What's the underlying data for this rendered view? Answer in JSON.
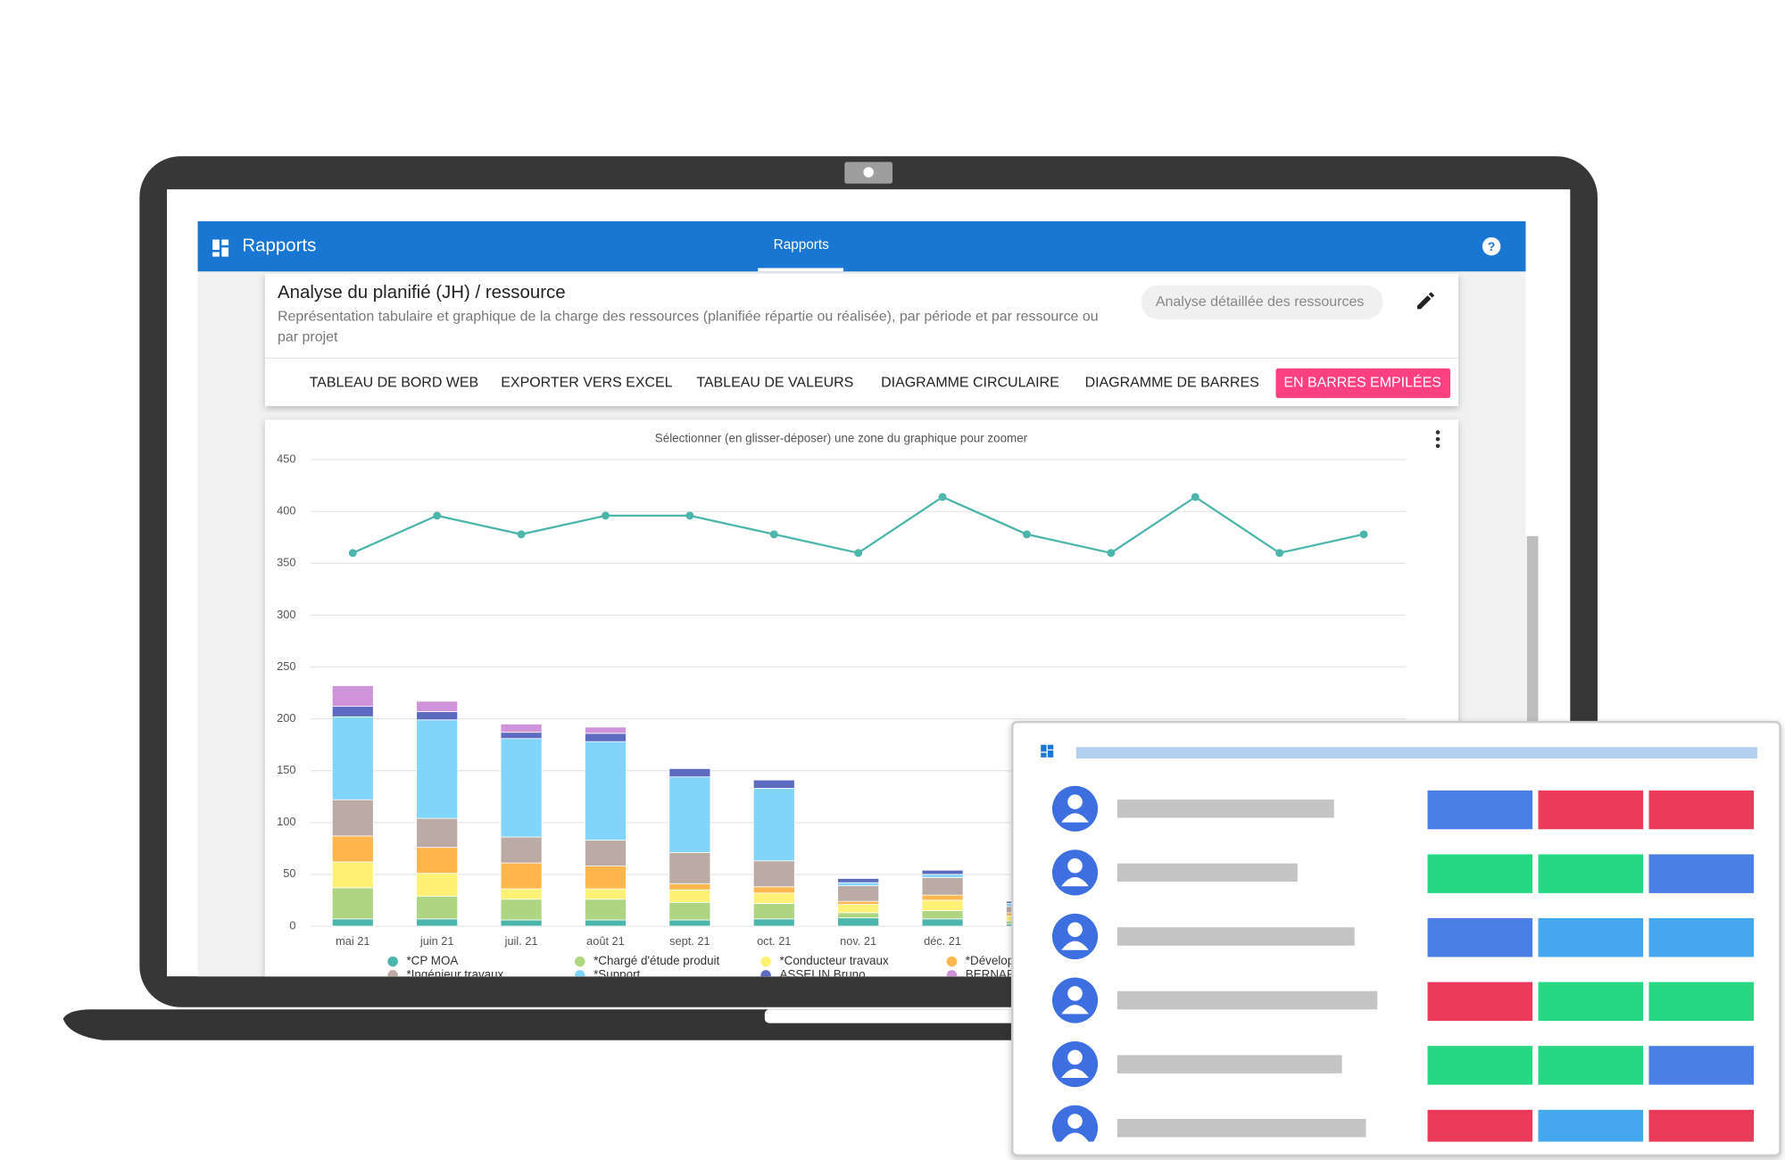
{
  "header": {
    "app_title": "Rapports",
    "nav_tab": "Rapports"
  },
  "report": {
    "title": "Analyse du planifié (JH) / ressource",
    "description_line1": "Représentation tabulaire et graphique de la charge des ressources (planifiée répartie ou réalisée), par période et par ressource ou",
    "description_line2": "par projet",
    "chip": "Analyse détaillée des ressources"
  },
  "tabs": [
    "TABLEAU DE BORD WEB",
    "EXPORTER VERS EXCEL",
    "TABLEAU DE VALEURS",
    "DIAGRAMME CIRCULAIRE",
    "DIAGRAMME DE BARRES",
    "EN BARRES EMPILÉES"
  ],
  "active_tab": 5,
  "chart_data": {
    "type": "stacked_bar_line",
    "hint": "Sélectionner (en glisser-déposer) une zone du graphique pour zoomer",
    "categories": [
      "mai 21",
      "juin 21",
      "juil. 21",
      "août 21",
      "sept. 21",
      "oct. 21",
      "nov. 21",
      "déc. 21",
      null,
      null,
      null,
      null,
      null
    ],
    "ylim": [
      0,
      450
    ],
    "yticks": [
      0,
      50,
      100,
      150,
      200,
      250,
      300,
      350,
      400,
      450
    ],
    "grid": true,
    "series": [
      {
        "name": "*CP MOA",
        "color": "#4db6ac",
        "values": [
          7,
          7,
          6,
          6,
          6,
          7,
          8,
          7,
          2,
          null,
          null,
          null,
          null
        ]
      },
      {
        "name": "*Chargé d'étude produit",
        "color": "#aed581",
        "values": [
          30,
          22,
          20,
          20,
          17,
          15,
          5,
          8,
          3,
          null,
          null,
          null,
          null
        ]
      },
      {
        "name": "*Conducteur travaux",
        "color": "#fff176",
        "values": [
          25,
          22,
          10,
          10,
          12,
          10,
          8,
          10,
          5,
          null,
          null,
          null,
          null
        ]
      },
      {
        "name": "*Dévelop",
        "color": "#ffb74d",
        "values": [
          25,
          25,
          25,
          22,
          6,
          6,
          3,
          5,
          3,
          null,
          null,
          null,
          null
        ]
      },
      {
        "name": "*Ingénieur travaux",
        "color": "#bcaaa4",
        "values": [
          35,
          28,
          25,
          25,
          30,
          25,
          15,
          17,
          6,
          null,
          null,
          null,
          null
        ]
      },
      {
        "name": "*Support",
        "color": "#81d4fa",
        "values": [
          80,
          95,
          95,
          95,
          73,
          70,
          3,
          3,
          3,
          null,
          null,
          null,
          null
        ]
      },
      {
        "name": "ASSELIN Bruno",
        "color": "#5c6bc0",
        "values": [
          10,
          8,
          6,
          8,
          8,
          8,
          4,
          4,
          2,
          null,
          null,
          null,
          null
        ]
      },
      {
        "name": "BERNAR",
        "color": "#ce93d8",
        "values": [
          20,
          10,
          8,
          6,
          0,
          0,
          0,
          0,
          0,
          null,
          null,
          null,
          null
        ]
      }
    ],
    "line": {
      "color": "#4db6ac",
      "values": [
        360,
        396,
        378,
        396,
        396,
        378,
        360,
        414,
        378,
        360,
        414,
        360,
        378
      ]
    }
  }
}
